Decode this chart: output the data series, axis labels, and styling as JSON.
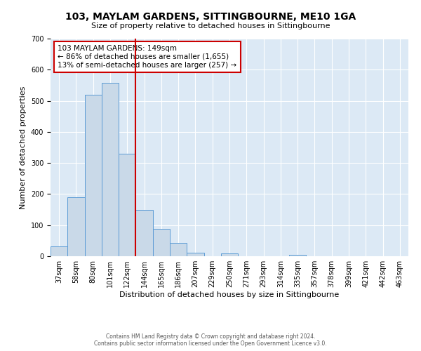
{
  "title": "103, MAYLAM GARDENS, SITTINGBOURNE, ME10 1GA",
  "subtitle": "Size of property relative to detached houses in Sittingbourne",
  "xlabel": "Distribution of detached houses by size in Sittingbourne",
  "ylabel": "Number of detached properties",
  "footer_lines": [
    "Contains HM Land Registry data © Crown copyright and database right 2024.",
    "Contains public sector information licensed under the Open Government Licence v3.0."
  ],
  "bin_labels": [
    "37sqm",
    "58sqm",
    "80sqm",
    "101sqm",
    "122sqm",
    "144sqm",
    "165sqm",
    "186sqm",
    "207sqm",
    "229sqm",
    "250sqm",
    "271sqm",
    "293sqm",
    "314sqm",
    "335sqm",
    "357sqm",
    "378sqm",
    "399sqm",
    "421sqm",
    "442sqm",
    "463sqm"
  ],
  "bin_values": [
    32,
    189,
    519,
    557,
    330,
    148,
    88,
    42,
    11,
    0,
    10,
    0,
    0,
    0,
    4,
    0,
    0,
    0,
    0,
    0,
    0
  ],
  "bar_color": "#c9d9e8",
  "bar_edge_color": "#5b9bd5",
  "property_line_color": "#cc0000",
  "property_line_bin": 5,
  "ylim": [
    0,
    700
  ],
  "yticks": [
    0,
    100,
    200,
    300,
    400,
    500,
    600,
    700
  ],
  "annotation_text": "103 MAYLAM GARDENS: 149sqm\n← 86% of detached houses are smaller (1,655)\n13% of semi-detached houses are larger (257) →",
  "annotation_box_color": "#cc0000",
  "bg_color": "#dce9f5",
  "title_fontsize": 10,
  "subtitle_fontsize": 8,
  "xlabel_fontsize": 8,
  "ylabel_fontsize": 8,
  "tick_fontsize": 7
}
